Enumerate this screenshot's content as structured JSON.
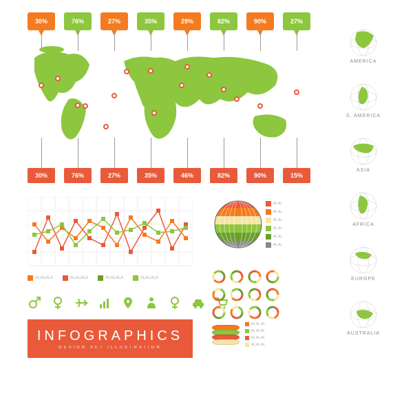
{
  "colors": {
    "green": "#8dc63f",
    "orange": "#f47b20",
    "red": "#e85a3a",
    "darkgreen": "#6b9e2e",
    "cream": "#f4e5a6",
    "grey": "#888888",
    "bg": "#ffffff"
  },
  "top_flags": [
    {
      "value": "30%",
      "color": "#f47b20"
    },
    {
      "value": "76%",
      "color": "#8dc63f"
    },
    {
      "value": "27%",
      "color": "#f47b20"
    },
    {
      "value": "35%",
      "color": "#8dc63f"
    },
    {
      "value": "29%",
      "color": "#f47b20"
    },
    {
      "value": "82%",
      "color": "#8dc63f"
    },
    {
      "value": "90%",
      "color": "#f47b20"
    },
    {
      "value": "27%",
      "color": "#8dc63f"
    }
  ],
  "bottom_tags": [
    {
      "value": "30%",
      "color": "#e85a3a"
    },
    {
      "value": "76%",
      "color": "#e85a3a"
    },
    {
      "value": "27%",
      "color": "#e85a3a"
    },
    {
      "value": "35%",
      "color": "#e85a3a"
    },
    {
      "value": "46%",
      "color": "#e85a3a"
    },
    {
      "value": "82%",
      "color": "#e85a3a"
    },
    {
      "value": "90%",
      "color": "#e85a3a"
    },
    {
      "value": "15%",
      "color": "#e85a3a"
    }
  ],
  "continents": [
    {
      "label": "AMERICA"
    },
    {
      "label": "S. AMERICA"
    },
    {
      "label": "ASIA"
    },
    {
      "label": "AFRICA"
    },
    {
      "label": "EUROPE"
    },
    {
      "label": "AUSTRALIA"
    }
  ],
  "linechart": {
    "series": [
      {
        "color": "#e85a3a",
        "points": [
          20,
          70,
          25,
          65,
          40,
          30,
          75,
          20,
          55,
          80,
          25,
          60
        ]
      },
      {
        "color": "#f47b20",
        "points": [
          60,
          35,
          55,
          40,
          65,
          55,
          30,
          70,
          45,
          35,
          65,
          40
        ]
      },
      {
        "color": "#8dc63f",
        "points": [
          45,
          50,
          60,
          30,
          50,
          68,
          48,
          52,
          62,
          48,
          50,
          55
        ]
      }
    ],
    "legend": [
      {
        "color": "#f47b20",
        "text": "ALALALA"
      },
      {
        "color": "#e85a3a",
        "text": "ALALALA"
      },
      {
        "color": "#6b9e2e",
        "text": "ALALALA"
      },
      {
        "color": "#8dc63f",
        "text": "ALALALA"
      }
    ]
  },
  "striped_globe": {
    "stripes": [
      "#e85a3a",
      "#f47b20",
      "#f4e5a6",
      "#8dc63f",
      "#6b9e2e",
      "#888888"
    ]
  },
  "donuts_palette": [
    "#e85a3a",
    "#f47b20",
    "#f4e5a6",
    "#8dc63f",
    "#6b9e2e"
  ],
  "icons": [
    "gender-male",
    "gender-female",
    "airplane",
    "chart",
    "pin",
    "person",
    "female-sign",
    "car",
    "cart"
  ],
  "titlebar": {
    "bg": "#e85a3a",
    "title": "INFOGRAPHICS",
    "subtitle": "DESIGN SET ILLUSTRATION"
  },
  "stack": {
    "layers": [
      "#f47b20",
      "#8dc63f",
      "#e85a3a",
      "#f4e5a6"
    ],
    "lines": [
      "AL AL AL",
      "AL AL AL",
      "AL AL AL",
      "AL AL AL"
    ]
  }
}
